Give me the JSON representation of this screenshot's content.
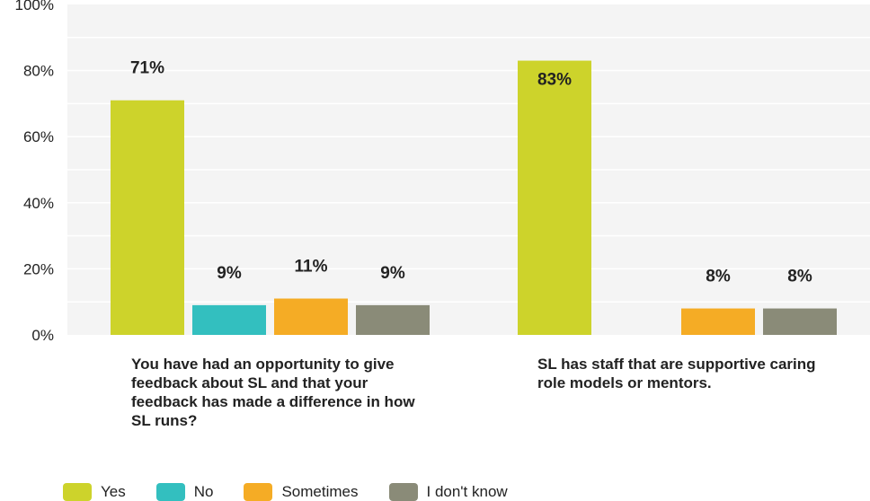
{
  "chart_data": {
    "type": "bar",
    "categories": [
      "You have had an opportunity to give feedback about SL and that your feedback has made a difference in how SL runs?",
      "SL has staff that are supportive caring role models or mentors."
    ],
    "series": [
      {
        "name": "Yes",
        "color": "#cdd32b",
        "values": [
          71,
          83
        ],
        "labels": [
          "71%",
          "83%"
        ]
      },
      {
        "name": "No",
        "color": "#33bfbf",
        "values": [
          9,
          0
        ],
        "labels": [
          "9%",
          ""
        ]
      },
      {
        "name": "Sometimes",
        "color": "#f5ac25",
        "values": [
          11,
          8
        ],
        "labels": [
          "11%",
          "8%"
        ]
      },
      {
        "name": "I don't know",
        "color": "#8a8b78",
        "values": [
          9,
          8
        ],
        "labels": [
          "9%",
          "8%"
        ]
      }
    ],
    "ylim": [
      0,
      100
    ],
    "yticks": [
      "0%",
      "20%",
      "40%",
      "60%",
      "80%",
      "100%"
    ],
    "grid": true,
    "legend_position": "bottom-left"
  }
}
